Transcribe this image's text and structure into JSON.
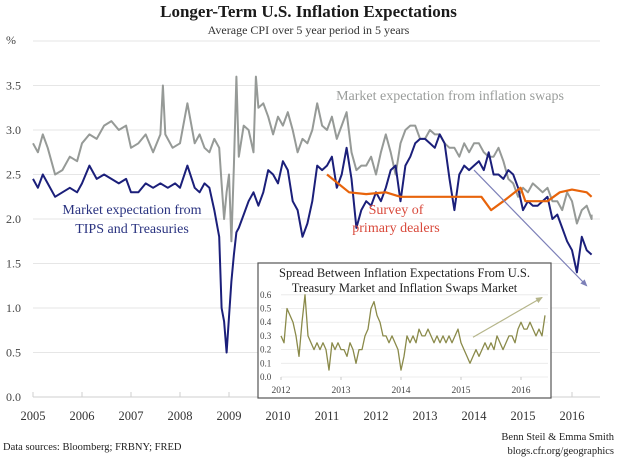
{
  "chart_data": {
    "type": "line",
    "title": "Longer-Term U.S. Inflation Expectations",
    "subtitle": "Average CPI over 5 year period in 5 years",
    "ylabel": "%",
    "xlabel": "",
    "ylim": [
      0.0,
      4.0
    ],
    "xlim": [
      2005.0,
      2016.6
    ],
    "grid": true,
    "y_ticks": [
      "0.0",
      "0.5",
      "1.0",
      "1.5",
      "2.0",
      "2.5",
      "3.0",
      "3.5"
    ],
    "x_ticks": [
      "2005",
      "2006",
      "2007",
      "2008",
      "2009",
      "2010",
      "2011",
      "2012",
      "2013",
      "2014",
      "2015",
      "2016"
    ],
    "series": [
      {
        "name": "Market expectation from inflation swaps",
        "color": "#969a97",
        "label_color": "#9a9d9b",
        "x": [
          2005.0,
          2005.1,
          2005.2,
          2005.3,
          2005.45,
          2005.6,
          2005.75,
          2005.9,
          2006.0,
          2006.15,
          2006.3,
          2006.45,
          2006.6,
          2006.75,
          2006.9,
          2007.0,
          2007.15,
          2007.3,
          2007.45,
          2007.6,
          2007.65,
          2007.7,
          2007.85,
          2008.0,
          2008.15,
          2008.3,
          2008.4,
          2008.5,
          2008.6,
          2008.7,
          2008.8,
          2008.85,
          2008.9,
          2008.95,
          2009.0,
          2009.05,
          2009.1,
          2009.15,
          2009.2,
          2009.3,
          2009.4,
          2009.5,
          2009.55,
          2009.6,
          2009.7,
          2009.8,
          2009.9,
          2010.0,
          2010.1,
          2010.2,
          2010.3,
          2010.4,
          2010.5,
          2010.6,
          2010.7,
          2010.8,
          2010.9,
          2011.0,
          2011.1,
          2011.2,
          2011.3,
          2011.4,
          2011.5,
          2011.6,
          2011.7,
          2011.8,
          2011.9,
          2012.0,
          2012.1,
          2012.2,
          2012.3,
          2012.4,
          2012.5,
          2012.6,
          2012.7,
          2012.8,
          2012.9,
          2013.0,
          2013.1,
          2013.2,
          2013.3,
          2013.4,
          2013.5,
          2013.6,
          2013.7,
          2013.8,
          2013.9,
          2014.0,
          2014.1,
          2014.2,
          2014.3,
          2014.4,
          2014.5,
          2014.6,
          2014.7,
          2014.8,
          2014.9,
          2015.0,
          2015.1,
          2015.2,
          2015.3,
          2015.4,
          2015.5,
          2015.6,
          2015.7,
          2015.8,
          2015.9,
          2016.0,
          2016.1,
          2016.2,
          2016.3,
          2016.4,
          2016.4
        ],
        "values": [
          2.85,
          2.75,
          2.95,
          2.8,
          2.5,
          2.55,
          2.7,
          2.65,
          2.85,
          2.95,
          2.9,
          3.05,
          3.1,
          3.0,
          3.05,
          2.8,
          2.85,
          2.95,
          2.75,
          2.95,
          3.5,
          2.95,
          2.8,
          2.85,
          3.3,
          2.85,
          2.95,
          2.8,
          2.75,
          2.9,
          2.8,
          2.4,
          2.0,
          2.3,
          2.5,
          1.75,
          2.6,
          3.6,
          2.7,
          3.05,
          3.0,
          2.75,
          3.6,
          3.25,
          3.3,
          3.15,
          2.95,
          3.15,
          3.05,
          3.2,
          3.0,
          2.75,
          2.9,
          2.85,
          3.0,
          3.3,
          3.05,
          3.0,
          3.15,
          2.9,
          3.05,
          3.2,
          2.75,
          2.55,
          2.6,
          2.6,
          2.7,
          2.5,
          2.75,
          2.95,
          2.75,
          2.5,
          2.85,
          3.0,
          3.05,
          3.05,
          2.9,
          2.9,
          3.0,
          2.95,
          2.95,
          2.85,
          2.8,
          2.8,
          2.7,
          2.85,
          2.75,
          2.85,
          2.85,
          2.75,
          2.7,
          2.7,
          2.8,
          2.65,
          2.45,
          2.4,
          2.25,
          2.35,
          2.3,
          2.4,
          2.35,
          2.3,
          2.35,
          2.2,
          2.2,
          2.1,
          2.3,
          2.2,
          1.95,
          2.1,
          2.15,
          2.0,
          2.05
        ]
      },
      {
        "name": "Market expectation from TIPS and Treasuries",
        "color": "#1b1f7a",
        "label_color": "#2a3380",
        "x": [
          2005.0,
          2005.1,
          2005.2,
          2005.3,
          2005.45,
          2005.6,
          2005.75,
          2005.9,
          2006.0,
          2006.15,
          2006.3,
          2006.45,
          2006.6,
          2006.75,
          2006.9,
          2007.0,
          2007.15,
          2007.3,
          2007.45,
          2007.6,
          2007.75,
          2007.9,
          2008.0,
          2008.15,
          2008.3,
          2008.4,
          2008.5,
          2008.6,
          2008.7,
          2008.8,
          2008.85,
          2008.9,
          2008.95,
          2009.0,
          2009.05,
          2009.1,
          2009.15,
          2009.2,
          2009.3,
          2009.4,
          2009.5,
          2009.6,
          2009.7,
          2009.8,
          2009.9,
          2010.0,
          2010.1,
          2010.2,
          2010.3,
          2010.4,
          2010.5,
          2010.6,
          2010.7,
          2010.8,
          2010.9,
          2011.0,
          2011.1,
          2011.2,
          2011.3,
          2011.4,
          2011.5,
          2011.6,
          2011.7,
          2011.8,
          2011.9,
          2012.0,
          2012.1,
          2012.2,
          2012.3,
          2012.4,
          2012.5,
          2012.6,
          2012.7,
          2012.8,
          2012.9,
          2013.0,
          2013.1,
          2013.2,
          2013.3,
          2013.4,
          2013.5,
          2013.6,
          2013.7,
          2013.8,
          2013.9,
          2014.0,
          2014.1,
          2014.2,
          2014.3,
          2014.4,
          2014.5,
          2014.6,
          2014.7,
          2014.8,
          2014.9,
          2015.0,
          2015.1,
          2015.2,
          2015.3,
          2015.4,
          2015.5,
          2015.6,
          2015.7,
          2015.8,
          2015.9,
          2016.0,
          2016.1,
          2016.2,
          2016.3,
          2016.4
        ],
        "values": [
          2.45,
          2.35,
          2.5,
          2.4,
          2.25,
          2.3,
          2.35,
          2.3,
          2.4,
          2.6,
          2.45,
          2.5,
          2.45,
          2.4,
          2.45,
          2.3,
          2.3,
          2.4,
          2.35,
          2.4,
          2.35,
          2.4,
          2.35,
          2.6,
          2.35,
          2.3,
          2.4,
          2.35,
          2.1,
          1.8,
          1.0,
          0.85,
          0.5,
          0.9,
          1.3,
          1.6,
          1.85,
          1.9,
          2.05,
          2.2,
          2.3,
          2.15,
          2.3,
          2.55,
          2.5,
          2.4,
          2.65,
          2.55,
          2.2,
          2.1,
          1.8,
          1.95,
          2.2,
          2.6,
          2.55,
          2.6,
          2.7,
          2.35,
          2.5,
          2.8,
          2.45,
          1.9,
          2.1,
          2.2,
          2.15,
          2.3,
          2.2,
          2.35,
          2.55,
          2.6,
          2.2,
          2.6,
          2.7,
          2.85,
          2.9,
          2.9,
          2.85,
          2.8,
          2.95,
          2.85,
          2.45,
          2.1,
          2.5,
          2.6,
          2.55,
          2.6,
          2.65,
          2.55,
          2.75,
          2.5,
          2.5,
          2.45,
          2.55,
          2.5,
          2.35,
          2.1,
          2.2,
          2.15,
          2.15,
          2.2,
          2.25,
          2.0,
          2.05,
          1.9,
          1.75,
          1.65,
          1.4,
          1.8,
          1.65,
          1.6
        ]
      },
      {
        "name": "Survey of primary dealers",
        "color": "#e8640b",
        "label_color": "#d94a3c",
        "x": [
          2011.0,
          2011.45,
          2011.8,
          2012.2,
          2012.5,
          2012.7,
          2013.0,
          2013.5,
          2014.0,
          2014.15,
          2014.35,
          2014.6,
          2014.95,
          2015.05,
          2015.5,
          2015.75,
          2016.0,
          2016.3,
          2016.4
        ],
        "values": [
          2.5,
          2.3,
          2.28,
          2.3,
          2.25,
          2.25,
          2.25,
          2.25,
          2.25,
          2.25,
          2.1,
          2.2,
          2.35,
          2.2,
          2.2,
          2.3,
          2.33,
          2.3,
          2.25
        ]
      }
    ],
    "annotations": [
      {
        "text": "Market expectation from inflation swaps",
        "color": "#9a9d9b"
      },
      {
        "text_lines": [
          "Market expectation from",
          "TIPS and Treasuries"
        ],
        "color": "#2a3380"
      },
      {
        "text_lines": [
          "Survey of",
          "primary dealers"
        ],
        "color": "#d94a3c"
      },
      {
        "type": "arrow",
        "from": [
          2014.0,
          2.55
        ],
        "to": [
          2016.3,
          1.25
        ],
        "color": "#7d80b8"
      }
    ],
    "inset": {
      "type": "line",
      "title_lines": [
        "Spread Between Inflation Expectations From U.S.",
        "Treasury Market and Inflation Swaps Market"
      ],
      "ylim": [
        0.0,
        0.6
      ],
      "xlim": [
        2012.0,
        2016.5
      ],
      "y_ticks": [
        "0.0",
        "0.1",
        "0.2",
        "0.3",
        "0.4",
        "0.5",
        "0.6"
      ],
      "x_ticks": [
        "2012",
        "2013",
        "2014",
        "2015",
        "2016"
      ],
      "color": "#8a8a4a",
      "x": [
        2012.0,
        2012.05,
        2012.1,
        2012.15,
        2012.2,
        2012.25,
        2012.3,
        2012.35,
        2012.4,
        2012.45,
        2012.5,
        2012.55,
        2012.6,
        2012.65,
        2012.7,
        2012.75,
        2012.8,
        2012.85,
        2012.9,
        2012.95,
        2013.0,
        2013.05,
        2013.1,
        2013.15,
        2013.2,
        2013.25,
        2013.3,
        2013.35,
        2013.4,
        2013.45,
        2013.5,
        2013.55,
        2013.6,
        2013.65,
        2013.7,
        2013.75,
        2013.8,
        2013.85,
        2013.9,
        2013.95,
        2014.0,
        2014.05,
        2014.1,
        2014.15,
        2014.2,
        2014.25,
        2014.3,
        2014.35,
        2014.4,
        2014.45,
        2014.5,
        2014.55,
        2014.6,
        2014.65,
        2014.7,
        2014.75,
        2014.8,
        2014.85,
        2014.9,
        2014.95,
        2015.0,
        2015.05,
        2015.1,
        2015.15,
        2015.2,
        2015.25,
        2015.3,
        2015.35,
        2015.4,
        2015.45,
        2015.5,
        2015.55,
        2015.6,
        2015.65,
        2015.7,
        2015.75,
        2015.8,
        2015.85,
        2015.9,
        2015.95,
        2016.0,
        2016.05,
        2016.1,
        2016.15,
        2016.2,
        2016.25,
        2016.3,
        2016.35,
        2016.4
      ],
      "values": [
        0.3,
        0.25,
        0.5,
        0.45,
        0.4,
        0.3,
        0.15,
        0.4,
        0.6,
        0.3,
        0.25,
        0.2,
        0.25,
        0.2,
        0.25,
        0.2,
        0.05,
        0.25,
        0.2,
        0.25,
        0.2,
        0.2,
        0.15,
        0.25,
        0.2,
        0.1,
        0.2,
        0.2,
        0.3,
        0.35,
        0.5,
        0.55,
        0.45,
        0.4,
        0.3,
        0.3,
        0.25,
        0.3,
        0.25,
        0.2,
        0.05,
        0.15,
        0.3,
        0.25,
        0.3,
        0.25,
        0.35,
        0.3,
        0.3,
        0.35,
        0.3,
        0.25,
        0.3,
        0.25,
        0.3,
        0.25,
        0.3,
        0.25,
        0.3,
        0.35,
        0.25,
        0.2,
        0.15,
        0.1,
        0.15,
        0.2,
        0.15,
        0.2,
        0.25,
        0.2,
        0.25,
        0.2,
        0.3,
        0.25,
        0.2,
        0.25,
        0.3,
        0.3,
        0.25,
        0.35,
        0.4,
        0.35,
        0.35,
        0.4,
        0.35,
        0.3,
        0.35,
        0.3,
        0.45
      ],
      "arrow": {
        "from": [
          2015.2,
          0.29
        ],
        "to": [
          2016.35,
          0.58
        ]
      }
    },
    "footer": {
      "sources": "Data sources: Bloomberg; FRBNY; FRED",
      "authors": "Benn Steil & Emma Smith",
      "site": "blogs.cfr.org/geographics"
    }
  }
}
